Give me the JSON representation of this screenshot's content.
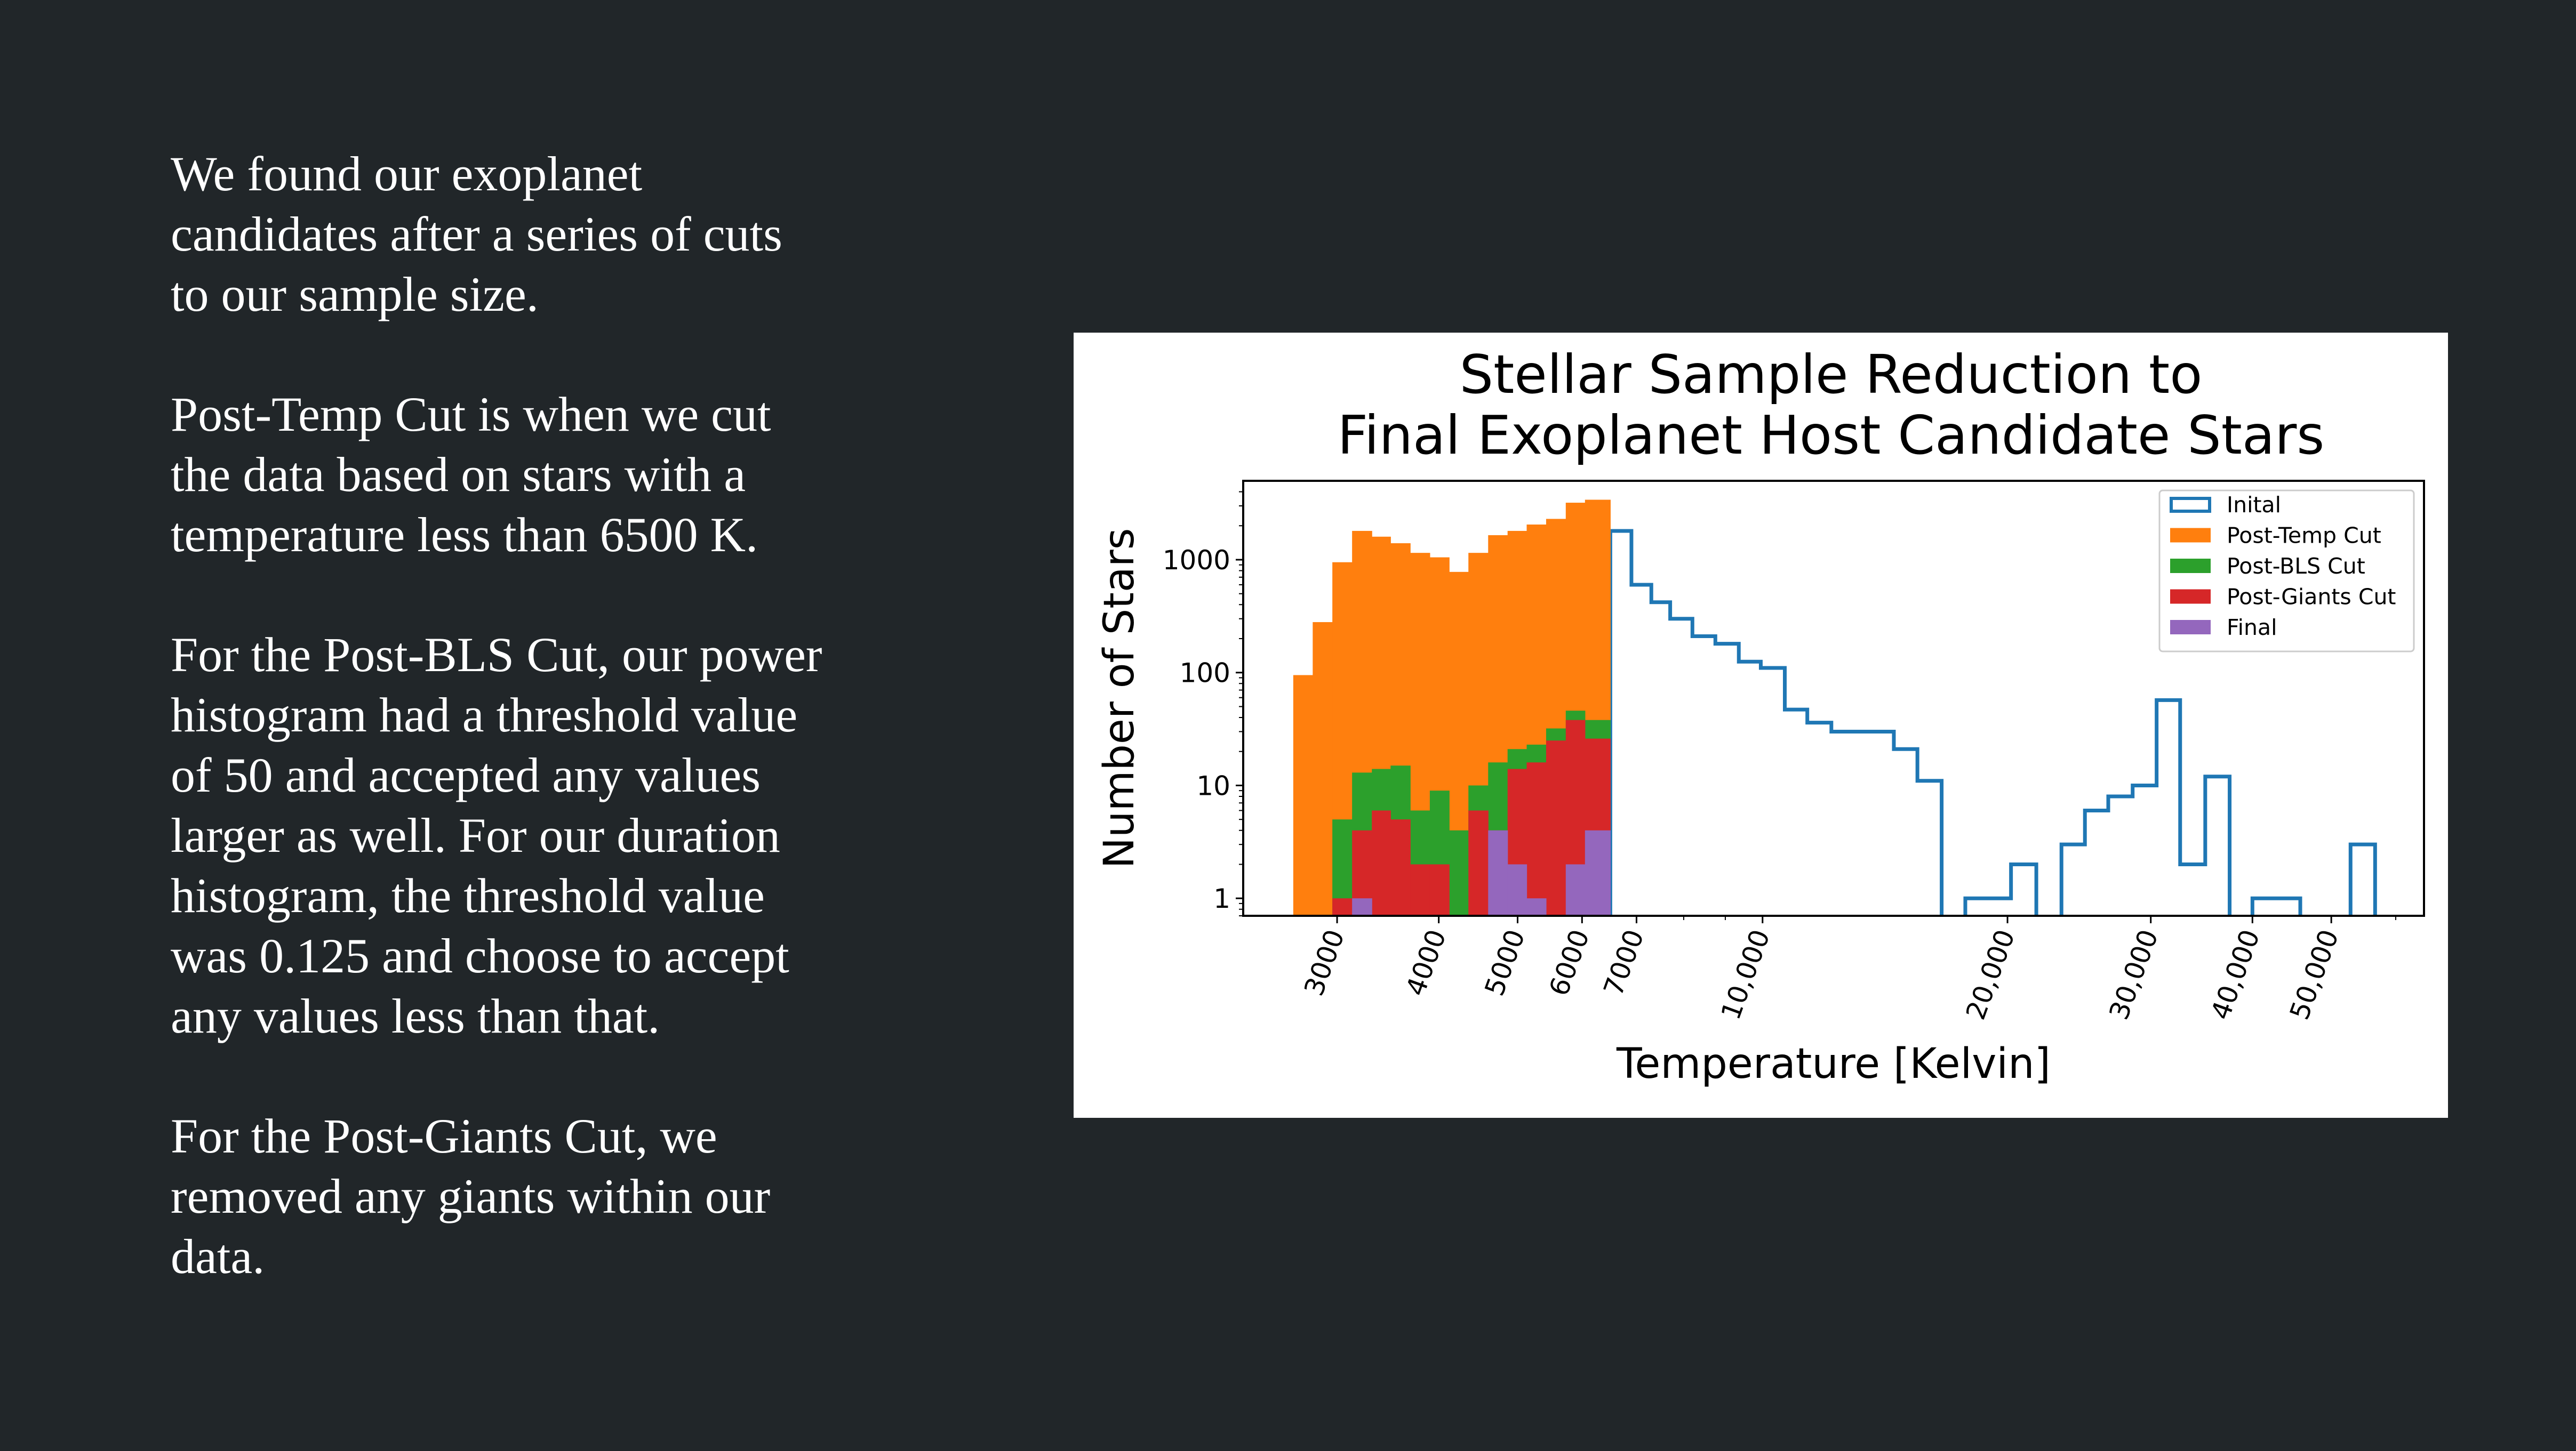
{
  "slide": {
    "paragraphs": [
      "We found our exoplanet\ncandidates after a series of cuts\nto our sample size.",
      "Post-Temp  Cut is when we cut\nthe data based on stars with a\ntemperature less than 6500 K.",
      "For the Post-BLS Cut, our power\nhistogram had a threshold value\nof 50 and accepted any values\nlarger as well. For our duration\nhistogram, the threshold value\nwas 0.125 and choose to accept\nany values less than that.",
      "For the Post-Giants Cut, we\nremoved any giants within our\ndata."
    ]
  },
  "chart_data": {
    "type": "histogram",
    "title": [
      "Stellar Sample Reduction to",
      "Final Exoplanet Host Candidate Stars"
    ],
    "xlabel": "Temperature [Kelvin]",
    "ylabel": "Number of Stars",
    "x_scale": "log",
    "y_scale": "log",
    "xlim": [
      2300,
      65000
    ],
    "ylim": [
      0.7,
      5000
    ],
    "x_ticks": [
      {
        "value": 3000,
        "label": "3000"
      },
      {
        "value": 4000,
        "label": "4000"
      },
      {
        "value": 5000,
        "label": "5000"
      },
      {
        "value": 6000,
        "label": "6000"
      },
      {
        "value": 7000,
        "label": "7000"
      },
      {
        "value": 10000,
        "label": "10,000"
      },
      {
        "value": 20000,
        "label": "20,000"
      },
      {
        "value": 30000,
        "label": "30,000"
      },
      {
        "value": 40000,
        "label": "40,000"
      },
      {
        "value": 50000,
        "label": "50,000"
      }
    ],
    "y_ticks": [
      {
        "value": 1,
        "label": "1"
      },
      {
        "value": 10,
        "label": "10"
      },
      {
        "value": 100,
        "label": "100"
      },
      {
        "value": 1000,
        "label": "1000"
      }
    ],
    "legend_position": "top-right",
    "series": [
      {
        "name": "Inital",
        "style": "step",
        "color": "#1f77b4",
        "bins": [
          {
            "x0": 6500,
            "x1": 6900,
            "count": 1800
          },
          {
            "x0": 6900,
            "x1": 7300,
            "count": 600
          },
          {
            "x0": 7300,
            "x1": 7700,
            "count": 420
          },
          {
            "x0": 7700,
            "x1": 8200,
            "count": 300
          },
          {
            "x0": 8200,
            "x1": 8750,
            "count": 210
          },
          {
            "x0": 8750,
            "x1": 9350,
            "count": 180
          },
          {
            "x0": 9350,
            "x1": 9950,
            "count": 125
          },
          {
            "x0": 9950,
            "x1": 10650,
            "count": 110
          },
          {
            "x0": 10650,
            "x1": 11350,
            "count": 47
          },
          {
            "x0": 11350,
            "x1": 12150,
            "count": 36
          },
          {
            "x0": 12150,
            "x1": 13000,
            "count": 30
          },
          {
            "x0": 13000,
            "x1": 14500,
            "count": 30
          },
          {
            "x0": 14500,
            "x1": 15500,
            "count": 21
          },
          {
            "x0": 15500,
            "x1": 16600,
            "count": 11
          },
          {
            "x0": 17750,
            "x1": 20200,
            "count": 1
          },
          {
            "x0": 20200,
            "x1": 21700,
            "count": 2
          },
          {
            "x0": 23300,
            "x1": 24900,
            "count": 3
          },
          {
            "x0": 24900,
            "x1": 26600,
            "count": 6
          },
          {
            "x0": 26600,
            "x1": 28500,
            "count": 8
          },
          {
            "x0": 28500,
            "x1": 30500,
            "count": 10
          },
          {
            "x0": 30500,
            "x1": 32600,
            "count": 57
          },
          {
            "x0": 32600,
            "x1": 35000,
            "count": 2
          },
          {
            "x0": 35000,
            "x1": 37500,
            "count": 12
          },
          {
            "x0": 40000,
            "x1": 45800,
            "count": 1
          },
          {
            "x0": 52800,
            "x1": 56600,
            "count": 3
          }
        ]
      },
      {
        "name": "Post-Temp Cut",
        "style": "filled",
        "color": "#ff7f0e",
        "bins": [
          {
            "x0": 2650,
            "x1": 2800,
            "count": 95
          },
          {
            "x0": 2800,
            "x1": 2960,
            "count": 280
          },
          {
            "x0": 2960,
            "x1": 3130,
            "count": 950
          },
          {
            "x0": 3130,
            "x1": 3310,
            "count": 1800
          },
          {
            "x0": 3310,
            "x1": 3490,
            "count": 1600
          },
          {
            "x0": 3490,
            "x1": 3690,
            "count": 1400
          },
          {
            "x0": 3690,
            "x1": 3900,
            "count": 1150
          },
          {
            "x0": 3900,
            "x1": 4120,
            "count": 1050
          },
          {
            "x0": 4120,
            "x1": 4350,
            "count": 780
          },
          {
            "x0": 4350,
            "x1": 4600,
            "count": 1150
          },
          {
            "x0": 4600,
            "x1": 4860,
            "count": 1650
          },
          {
            "x0": 4860,
            "x1": 5130,
            "count": 1800
          },
          {
            "x0": 5130,
            "x1": 5420,
            "count": 2050
          },
          {
            "x0": 5420,
            "x1": 5730,
            "count": 2300
          },
          {
            "x0": 5730,
            "x1": 6050,
            "count": 3200
          },
          {
            "x0": 6050,
            "x1": 6500,
            "count": 3400
          }
        ]
      },
      {
        "name": "Post-BLS Cut",
        "style": "filled",
        "color": "#2ca02c",
        "bins": [
          {
            "x0": 2960,
            "x1": 3130,
            "count": 5
          },
          {
            "x0": 3130,
            "x1": 3310,
            "count": 13
          },
          {
            "x0": 3310,
            "x1": 3490,
            "count": 14
          },
          {
            "x0": 3490,
            "x1": 3690,
            "count": 15
          },
          {
            "x0": 3690,
            "x1": 3900,
            "count": 6
          },
          {
            "x0": 3900,
            "x1": 4120,
            "count": 9
          },
          {
            "x0": 4120,
            "x1": 4350,
            "count": 4
          },
          {
            "x0": 4350,
            "x1": 4600,
            "count": 10
          },
          {
            "x0": 4600,
            "x1": 4860,
            "count": 16
          },
          {
            "x0": 4860,
            "x1": 5130,
            "count": 21
          },
          {
            "x0": 5130,
            "x1": 5420,
            "count": 23
          },
          {
            "x0": 5420,
            "x1": 5730,
            "count": 32
          },
          {
            "x0": 5730,
            "x1": 6050,
            "count": 46
          },
          {
            "x0": 6050,
            "x1": 6500,
            "count": 38
          }
        ]
      },
      {
        "name": "Post-Giants Cut",
        "style": "filled",
        "color": "#d62728",
        "bins": [
          {
            "x0": 2960,
            "x1": 3130,
            "count": 1
          },
          {
            "x0": 3130,
            "x1": 3310,
            "count": 4
          },
          {
            "x0": 3310,
            "x1": 3490,
            "count": 6
          },
          {
            "x0": 3490,
            "x1": 3690,
            "count": 5
          },
          {
            "x0": 3690,
            "x1": 3900,
            "count": 2
          },
          {
            "x0": 3900,
            "x1": 4120,
            "count": 2
          },
          {
            "x0": 4350,
            "x1": 4600,
            "count": 6
          },
          {
            "x0": 4600,
            "x1": 4860,
            "count": 4
          },
          {
            "x0": 4860,
            "x1": 5130,
            "count": 14
          },
          {
            "x0": 5130,
            "x1": 5420,
            "count": 16
          },
          {
            "x0": 5420,
            "x1": 5730,
            "count": 25
          },
          {
            "x0": 5730,
            "x1": 6050,
            "count": 38
          },
          {
            "x0": 6050,
            "x1": 6500,
            "count": 26
          }
        ]
      },
      {
        "name": "Final",
        "style": "filled",
        "color": "#9467bd",
        "bins": [
          {
            "x0": 3130,
            "x1": 3310,
            "count": 1
          },
          {
            "x0": 4600,
            "x1": 4860,
            "count": 4
          },
          {
            "x0": 4860,
            "x1": 5130,
            "count": 2
          },
          {
            "x0": 5130,
            "x1": 5420,
            "count": 1
          },
          {
            "x0": 5730,
            "x1": 6050,
            "count": 2
          },
          {
            "x0": 6050,
            "x1": 6500,
            "count": 4
          }
        ]
      }
    ]
  }
}
